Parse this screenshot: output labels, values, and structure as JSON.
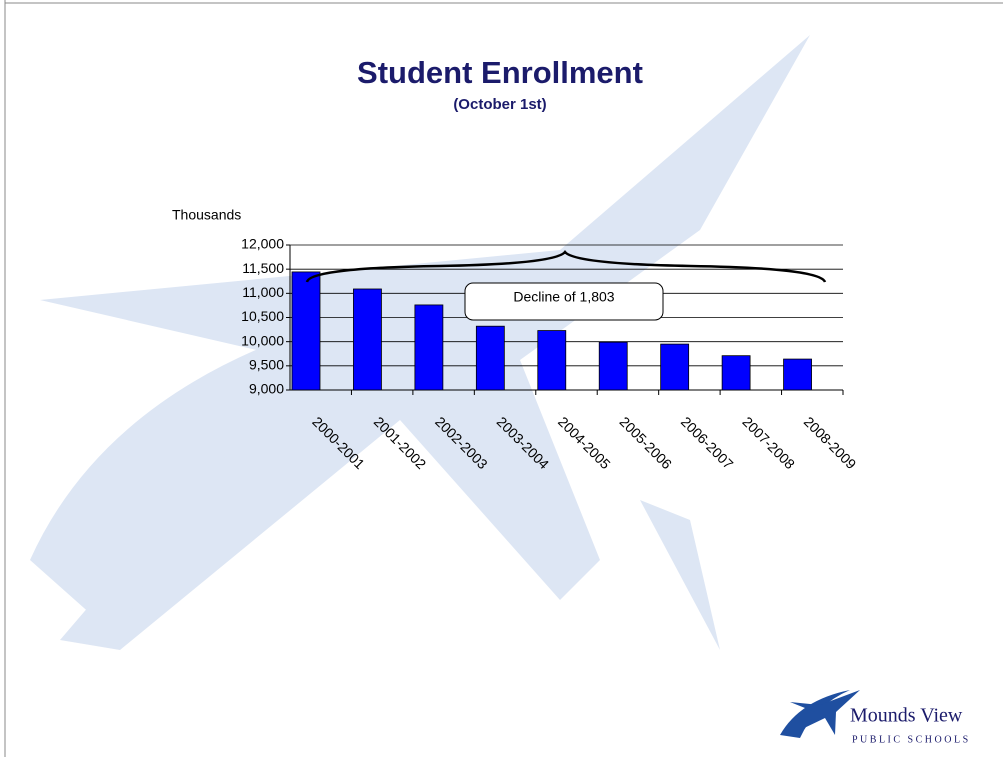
{
  "chart_data": {
    "type": "bar",
    "title": "Student Enrollment",
    "subtitle": "(October 1st)",
    "y_label": "Thousands",
    "categories": [
      "2000-2001",
      "2001-2002",
      "2002-2003",
      "2003-2004",
      "2004-2005",
      "2005-2006",
      "2006-2007",
      "2007-2008",
      "2008-2009"
    ],
    "values": [
      11443,
      11090,
      10760,
      10320,
      10230,
      9990,
      9950,
      9710,
      9640
    ],
    "color": "#0000ff",
    "ylim": [
      9000,
      12000
    ],
    "yticks": [
      {
        "value": 9000,
        "label": "9,000"
      },
      {
        "value": 9500,
        "label": "9,500"
      },
      {
        "value": 10000,
        "label": "10,000"
      },
      {
        "value": 10500,
        "label": "10,500"
      },
      {
        "value": 11000,
        "label": "11,000"
      },
      {
        "value": 11500,
        "label": "11,500"
      },
      {
        "value": 12000,
        "label": "12,000"
      }
    ],
    "grid": true,
    "annotation": "Decline of 1,803"
  },
  "logo": {
    "name": "Mounds View",
    "subtitle": "PUBLIC SCHOOLS"
  }
}
